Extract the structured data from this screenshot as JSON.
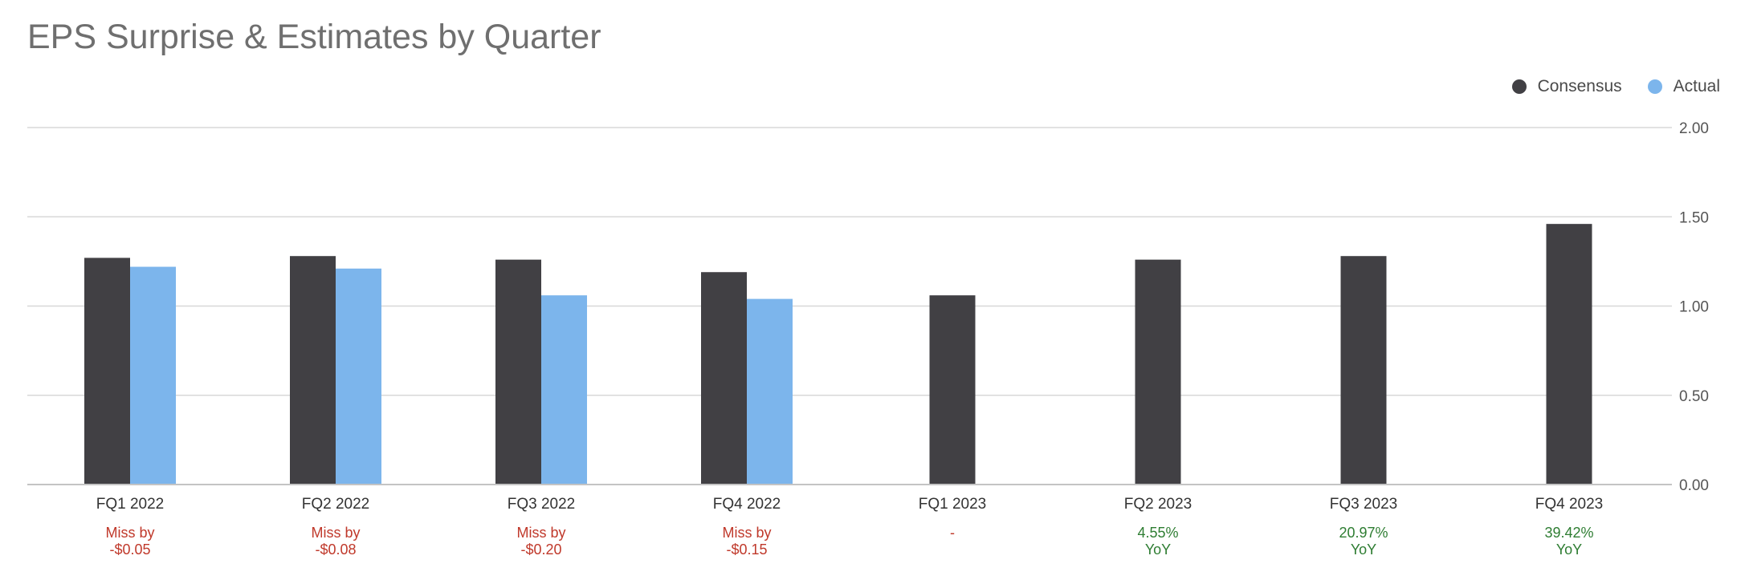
{
  "title": "EPS Surprise & Estimates by Quarter",
  "legend": {
    "consensus_label": "Consensus",
    "actual_label": "Actual"
  },
  "colors": {
    "consensus": "#414044",
    "actual": "#7cb5ec",
    "miss": "#c0392b",
    "growth": "#2e7d32",
    "grid": "#d8d8d8",
    "axis": "#c4c4c4"
  },
  "chart_data": {
    "type": "bar",
    "title": "EPS Surprise & Estimates by Quarter",
    "xlabel": "",
    "ylabel": "",
    "ylim": [
      0,
      2.0
    ],
    "yticks": [
      "0.00",
      "0.50",
      "1.00",
      "1.50",
      "2.00"
    ],
    "ytick_values": [
      0,
      0.5,
      1.0,
      1.5,
      2.0
    ],
    "y_axis_side": "right",
    "grid": true,
    "legend_position": "top-right",
    "categories": [
      "FQ1 2022",
      "FQ2 2022",
      "FQ3 2022",
      "FQ4 2022",
      "FQ1 2023",
      "FQ2 2023",
      "FQ3 2023",
      "FQ4 2023"
    ],
    "series": [
      {
        "name": "Consensus",
        "values": [
          1.27,
          1.28,
          1.26,
          1.19,
          1.06,
          1.26,
          1.28,
          1.46
        ]
      },
      {
        "name": "Actual",
        "values": [
          1.22,
          1.21,
          1.06,
          1.04,
          null,
          null,
          null,
          null
        ]
      }
    ],
    "annotations": [
      {
        "line1": "Miss by",
        "line2": "-$0.05",
        "kind": "miss"
      },
      {
        "line1": "Miss by",
        "line2": "-$0.08",
        "kind": "miss"
      },
      {
        "line1": "Miss by",
        "line2": "-$0.20",
        "kind": "miss"
      },
      {
        "line1": "Miss by",
        "line2": "-$0.15",
        "kind": "miss"
      },
      {
        "line1": "-",
        "line2": "",
        "kind": "miss"
      },
      {
        "line1": "4.55%",
        "line2": "YoY",
        "kind": "growth"
      },
      {
        "line1": "20.97%",
        "line2": "YoY",
        "kind": "growth"
      },
      {
        "line1": "39.42%",
        "line2": "YoY",
        "kind": "growth"
      }
    ]
  }
}
